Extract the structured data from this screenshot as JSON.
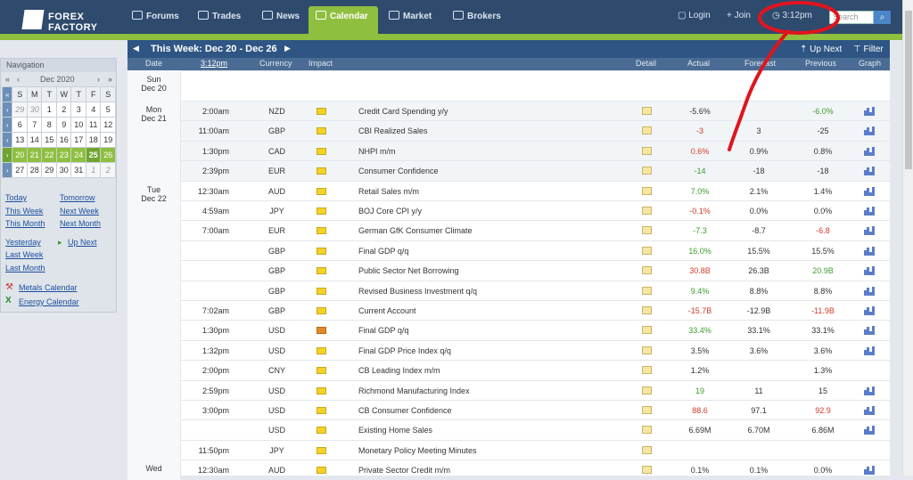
{
  "header": {
    "logo": {
      "line1": "FOREX",
      "line2": "FACTORY"
    },
    "tabs": [
      {
        "label": "Forums"
      },
      {
        "label": "Trades"
      },
      {
        "label": "News"
      },
      {
        "label": "Calendar"
      },
      {
        "label": "Market"
      },
      {
        "label": "Brokers"
      }
    ],
    "login": "Login",
    "join": "Join",
    "time": "3:12pm",
    "search_placeholder": "Search",
    "search_icon": "magnifier-icon"
  },
  "nav": {
    "title": "Navigation",
    "month": "Dec 2020",
    "prev": "«",
    "prev2": "‹",
    "next": "›",
    "next2": "»",
    "days": [
      "S",
      "M",
      "T",
      "W",
      "T",
      "F",
      "S"
    ],
    "weeks": [
      [
        "29",
        "30",
        "1",
        "2",
        "3",
        "4",
        "5"
      ],
      [
        "6",
        "7",
        "8",
        "9",
        "10",
        "11",
        "12"
      ],
      [
        "13",
        "14",
        "15",
        "16",
        "17",
        "18",
        "19"
      ],
      [
        "20",
        "21",
        "22",
        "23",
        "24",
        "25",
        "26"
      ],
      [
        "27",
        "28",
        "29",
        "30",
        "31",
        "1",
        "2"
      ]
    ],
    "links": {
      "today": "Today",
      "tomorrow": "Tomorrow",
      "this_week": "This Week",
      "next_week": "Next Week",
      "this_month": "This Month",
      "next_month": "Next Month",
      "yesterday": "Yesterday",
      "up_next": "Up Next",
      "last_week": "Last Week",
      "last_month": "Last Month",
      "metals": "Metals Calendar",
      "energy": "Energy Calendar"
    }
  },
  "week": {
    "label": "This Week: Dec 20 - Dec 26",
    "up_next": "Up Next",
    "filter": "Filter"
  },
  "columns": {
    "date": "Date",
    "time": "3:12pm",
    "currency": "Currency",
    "impact": "Impact",
    "detail": "Detail",
    "actual": "Actual",
    "forecast": "Forecast",
    "previous": "Previous",
    "graph": "Graph"
  },
  "days": [
    {
      "day": "Sun",
      "date": "Dec 20",
      "rows": []
    },
    {
      "day": "Mon",
      "date": "Dec 21",
      "rows": [
        {
          "time": "2:00am",
          "cur": "NZD",
          "impact": "low",
          "event": "Credit Card Spending y/y",
          "actual": "-5.6%",
          "actual_color": "neutral",
          "forecast": "",
          "previous": "-6.0%",
          "prev_color": "green",
          "graph": true
        },
        {
          "time": "11:00am",
          "cur": "GBP",
          "impact": "low",
          "event": "CBI Realized Sales",
          "actual": "-3",
          "actual_color": "red",
          "forecast": "3",
          "previous": "-25",
          "prev_color": "neutral",
          "graph": true
        },
        {
          "time": "1:30pm",
          "cur": "CAD",
          "impact": "low",
          "event": "NHPI m/m",
          "actual": "0.6%",
          "actual_color": "red",
          "forecast": "0.9%",
          "previous": "0.8%",
          "prev_color": "neutral",
          "graph": true
        },
        {
          "time": "2:39pm",
          "cur": "EUR",
          "impact": "low",
          "event": "Consumer Confidence",
          "actual": "-14",
          "actual_color": "green",
          "forecast": "-18",
          "previous": "-18",
          "prev_color": "neutral",
          "graph": true
        }
      ]
    },
    {
      "day": "Tue",
      "date": "Dec 22",
      "rows": [
        {
          "time": "12:30am",
          "cur": "AUD",
          "impact": "low",
          "event": "Retail Sales m/m",
          "actual": "7.0%",
          "actual_color": "green",
          "forecast": "2.1%",
          "previous": "1.4%",
          "prev_color": "neutral",
          "graph": true
        },
        {
          "time": "4:59am",
          "cur": "JPY",
          "impact": "low",
          "event": "BOJ Core CPI y/y",
          "actual": "-0.1%",
          "actual_color": "red",
          "forecast": "0.0%",
          "previous": "0.0%",
          "prev_color": "neutral",
          "graph": true
        },
        {
          "time": "7:00am",
          "cur": "EUR",
          "impact": "low",
          "event": "German GfK Consumer Climate",
          "actual": "-7.3",
          "actual_color": "green",
          "forecast": "-8.7",
          "previous": "-6.8",
          "prev_color": "red",
          "graph": true
        },
        {
          "time": "",
          "cur": "GBP",
          "impact": "low",
          "event": "Final GDP q/q",
          "actual": "16.0%",
          "actual_color": "green",
          "forecast": "15.5%",
          "previous": "15.5%",
          "prev_color": "neutral",
          "graph": true
        },
        {
          "time": "",
          "cur": "GBP",
          "impact": "low",
          "event": "Public Sector Net Borrowing",
          "actual": "30.8B",
          "actual_color": "red",
          "forecast": "26.3B",
          "previous": "20.9B",
          "prev_color": "green",
          "graph": true
        },
        {
          "time": "",
          "cur": "GBP",
          "impact": "low",
          "event": "Revised Business Investment q/q",
          "actual": "9.4%",
          "actual_color": "green",
          "forecast": "8.8%",
          "previous": "8.8%",
          "prev_color": "neutral",
          "graph": true
        },
        {
          "time": "7:02am",
          "cur": "GBP",
          "impact": "low",
          "event": "Current Account",
          "actual": "-15.7B",
          "actual_color": "red",
          "forecast": "-12.9B",
          "previous": "-11.9B",
          "prev_color": "red",
          "graph": true
        },
        {
          "time": "1:30pm",
          "cur": "USD",
          "impact": "medium",
          "event": "Final GDP q/q",
          "actual": "33.4%",
          "actual_color": "green",
          "forecast": "33.1%",
          "previous": "33.1%",
          "prev_color": "neutral",
          "graph": true
        },
        {
          "time": "1:32pm",
          "cur": "USD",
          "impact": "low",
          "event": "Final GDP Price Index q/q",
          "actual": "3.5%",
          "actual_color": "neutral",
          "forecast": "3.6%",
          "previous": "3.6%",
          "prev_color": "neutral",
          "graph": true
        },
        {
          "time": "2:00pm",
          "cur": "CNY",
          "impact": "low",
          "event": "CB Leading Index m/m",
          "actual": "1.2%",
          "actual_color": "neutral",
          "forecast": "",
          "previous": "1.3%",
          "prev_color": "neutral",
          "graph": false
        },
        {
          "time": "2:59pm",
          "cur": "USD",
          "impact": "low",
          "event": "Richmond Manufacturing Index",
          "actual": "19",
          "actual_color": "green",
          "forecast": "11",
          "previous": "15",
          "prev_color": "neutral",
          "graph": true
        },
        {
          "time": "3:00pm",
          "cur": "USD",
          "impact": "low",
          "event": "CB Consumer Confidence",
          "actual": "88.6",
          "actual_color": "red",
          "forecast": "97.1",
          "previous": "92.9",
          "prev_color": "red",
          "graph": true
        },
        {
          "time": "",
          "cur": "USD",
          "impact": "low",
          "event": "Existing Home Sales",
          "actual": "6.69M",
          "actual_color": "neutral",
          "forecast": "6.70M",
          "previous": "6.86M",
          "prev_color": "neutral",
          "graph": true
        },
        {
          "time": "11:50pm",
          "cur": "JPY",
          "impact": "low",
          "event": "Monetary Policy Meeting Minutes",
          "actual": "",
          "actual_color": "neutral",
          "forecast": "",
          "previous": "",
          "prev_color": "neutral",
          "graph": false
        }
      ]
    },
    {
      "day": "Wed",
      "date": "",
      "rows": [
        {
          "time": "12:30am",
          "cur": "AUD",
          "impact": "low",
          "event": "Private Sector Credit m/m",
          "actual": "0.1%",
          "actual_color": "neutral",
          "forecast": "0.1%",
          "previous": "0.0%",
          "prev_color": "neutral",
          "graph": true
        }
      ]
    }
  ],
  "colors": {
    "navy": "#2e4a6d",
    "green": "#8fbf3f",
    "annotation": "#e0141e"
  }
}
